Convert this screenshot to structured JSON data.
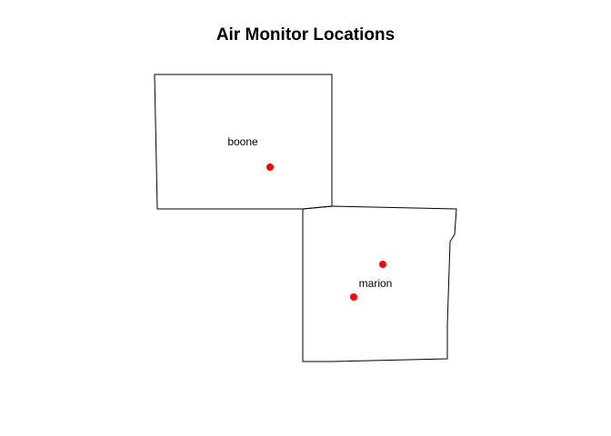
{
  "title": "Air Monitor Locations",
  "marker_color": "#ff0000",
  "outline_color": "#000000",
  "counties": [
    {
      "name": "boone"
    },
    {
      "name": "marion"
    }
  ]
}
